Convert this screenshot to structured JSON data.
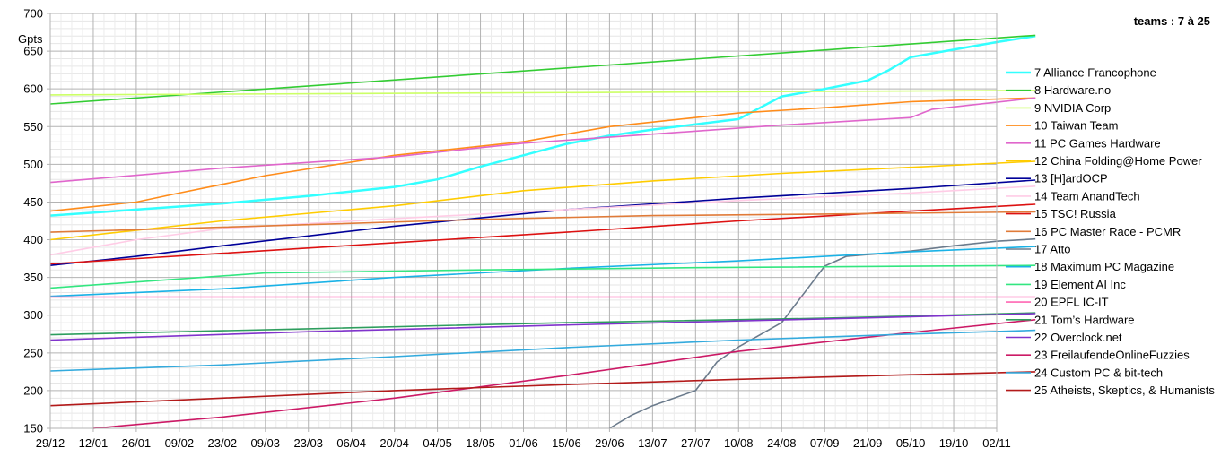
{
  "chart_data": {
    "type": "line",
    "title": "teams : 7 à 25",
    "ylabel": "Gpts",
    "xlabel": "",
    "ylim": [
      150,
      700
    ],
    "y_ticks": [
      150,
      200,
      250,
      300,
      350,
      400,
      450,
      500,
      550,
      600,
      650,
      700
    ],
    "x_ticks": [
      "29/12",
      "12/01",
      "26/01",
      "09/02",
      "23/02",
      "09/03",
      "23/03",
      "06/04",
      "20/04",
      "04/05",
      "18/05",
      "01/06",
      "15/06",
      "29/06",
      "13/07",
      "27/07",
      "10/08",
      "24/08",
      "07/09",
      "21/09",
      "05/10",
      "19/10",
      "02/11"
    ],
    "grid": true,
    "legend_position": "right",
    "series": [
      {
        "name": "7 Alliance Francophone",
        "color": "#33ffff",
        "points": [
          [
            0,
            432
          ],
          [
            2,
            440
          ],
          [
            4,
            448
          ],
          [
            6,
            458
          ],
          [
            8,
            470
          ],
          [
            9,
            480
          ],
          [
            10,
            497
          ],
          [
            11,
            512
          ],
          [
            12,
            527
          ],
          [
            13,
            538
          ],
          [
            14,
            546
          ],
          [
            15,
            553
          ],
          [
            16,
            560
          ],
          [
            16.5,
            575
          ],
          [
            17,
            590
          ],
          [
            18,
            600
          ],
          [
            19,
            611
          ],
          [
            19.5,
            625
          ],
          [
            20,
            642
          ],
          [
            21,
            652
          ],
          [
            22,
            662
          ],
          [
            22.9,
            670
          ]
        ]
      },
      {
        "name": "8 Hardware.no",
        "color": "#33cc33",
        "points": [
          [
            0,
            580
          ],
          [
            22.9,
            671
          ]
        ]
      },
      {
        "name": "9 NVIDIA Corp",
        "color": "#ccff66",
        "points": [
          [
            0,
            592
          ],
          [
            22.9,
            598
          ]
        ]
      },
      {
        "name": "10 Taiwan Team",
        "color": "#ff8c1a",
        "points": [
          [
            0,
            438
          ],
          [
            2,
            450
          ],
          [
            3,
            462
          ],
          [
            5,
            485
          ],
          [
            8,
            512
          ],
          [
            11,
            530
          ],
          [
            13,
            550
          ],
          [
            16,
            568
          ],
          [
            18,
            575
          ],
          [
            20,
            583
          ],
          [
            22.9,
            588
          ]
        ]
      },
      {
        "name": "11 PC Games Hardware",
        "color": "#e066cc",
        "points": [
          [
            0,
            476
          ],
          [
            4,
            495
          ],
          [
            8,
            510
          ],
          [
            11,
            528
          ],
          [
            14,
            540
          ],
          [
            17,
            552
          ],
          [
            20,
            562
          ],
          [
            20.5,
            573
          ],
          [
            22.9,
            588
          ]
        ]
      },
      {
        "name": "12 China Folding@Home Power",
        "color": "#ffcc00",
        "points": [
          [
            0,
            400
          ],
          [
            4,
            425
          ],
          [
            8,
            445
          ],
          [
            11,
            465
          ],
          [
            14,
            478
          ],
          [
            17,
            488
          ],
          [
            20,
            496
          ],
          [
            22.9,
            504
          ]
        ]
      },
      {
        "name": "13 [H]ardOCP",
        "color": "#000099",
        "points": [
          [
            0,
            366
          ],
          [
            2,
            378
          ],
          [
            4,
            392
          ],
          [
            8,
            418
          ],
          [
            12,
            440
          ],
          [
            16,
            455
          ],
          [
            20,
            468
          ],
          [
            22.9,
            479
          ]
        ]
      },
      {
        "name": "14 Team AnandTech",
        "color": "#ffcce6",
        "points": [
          [
            0,
            380
          ],
          [
            2,
            400
          ],
          [
            4,
            415
          ],
          [
            8,
            428
          ],
          [
            12,
            440
          ],
          [
            16,
            452
          ],
          [
            20,
            462
          ],
          [
            22.9,
            471
          ]
        ]
      },
      {
        "name": "15 TSC! Russia",
        "color": "#dd1111",
        "points": [
          [
            0,
            368
          ],
          [
            4,
            382
          ],
          [
            8,
            396
          ],
          [
            12,
            410
          ],
          [
            16,
            425
          ],
          [
            20,
            438
          ],
          [
            22.9,
            447
          ]
        ]
      },
      {
        "name": "16 PC Master Race - PCMR",
        "color": "#e07b39",
        "points": [
          [
            0,
            410
          ],
          [
            6,
            420
          ],
          [
            10,
            427
          ],
          [
            14,
            432
          ],
          [
            18,
            434
          ],
          [
            22.9,
            437
          ]
        ]
      },
      {
        "name": "17 Atto",
        "color": "#6b7b8c",
        "points": [
          [
            13,
            150
          ],
          [
            13.5,
            167
          ],
          [
            14,
            180
          ],
          [
            15,
            200
          ],
          [
            15.5,
            238
          ],
          [
            16,
            258
          ],
          [
            17,
            290
          ],
          [
            17.6,
            335
          ],
          [
            18,
            365
          ],
          [
            18.5,
            378
          ],
          [
            20,
            385
          ],
          [
            21,
            392
          ],
          [
            22,
            398
          ],
          [
            22.9,
            401
          ]
        ]
      },
      {
        "name": "18 Maximum PC Magazine",
        "color": "#1ab2e6",
        "points": [
          [
            0,
            325
          ],
          [
            4,
            335
          ],
          [
            8,
            350
          ],
          [
            12,
            362
          ],
          [
            16,
            372
          ],
          [
            20,
            384
          ],
          [
            22.9,
            391
          ]
        ]
      },
      {
        "name": "19 Element AI Inc",
        "color": "#33e680",
        "points": [
          [
            0,
            336
          ],
          [
            5,
            356
          ],
          [
            10,
            360
          ],
          [
            15,
            363
          ],
          [
            22.9,
            366
          ]
        ]
      },
      {
        "name": "20 EPFL IC-IT",
        "color": "#ff66b3",
        "points": [
          [
            0,
            324
          ],
          [
            22.9,
            324
          ]
        ]
      },
      {
        "name": "21 Tom’s Hardware",
        "color": "#2e9e5e",
        "points": [
          [
            0,
            274
          ],
          [
            6,
            282
          ],
          [
            12,
            290
          ],
          [
            18,
            296
          ],
          [
            22.9,
            303
          ]
        ]
      },
      {
        "name": "22 Overclock.net",
        "color": "#8033cc",
        "points": [
          [
            0,
            267
          ],
          [
            6,
            278
          ],
          [
            12,
            287
          ],
          [
            18,
            295
          ],
          [
            22.9,
            302
          ]
        ]
      },
      {
        "name": "23 FreilaufendeOnlineFuzzies",
        "color": "#cc1a66",
        "points": [
          [
            1,
            150
          ],
          [
            4,
            165
          ],
          [
            8,
            190
          ],
          [
            12,
            220
          ],
          [
            16,
            252
          ],
          [
            20,
            277
          ],
          [
            22.9,
            294
          ]
        ]
      },
      {
        "name": "24 Custom PC & bit-tech",
        "color": "#33aadd",
        "points": [
          [
            0,
            226
          ],
          [
            4,
            234
          ],
          [
            8,
            245
          ],
          [
            12,
            257
          ],
          [
            16,
            267
          ],
          [
            20,
            275
          ],
          [
            22.9,
            280
          ]
        ]
      },
      {
        "name": "25 Atheists, Skeptics, & Humanists",
        "color": "#b31a1a",
        "points": [
          [
            0,
            180
          ],
          [
            4,
            190
          ],
          [
            8,
            200
          ],
          [
            12,
            208
          ],
          [
            16,
            215
          ],
          [
            20,
            221
          ],
          [
            22.9,
            225
          ]
        ]
      }
    ]
  }
}
